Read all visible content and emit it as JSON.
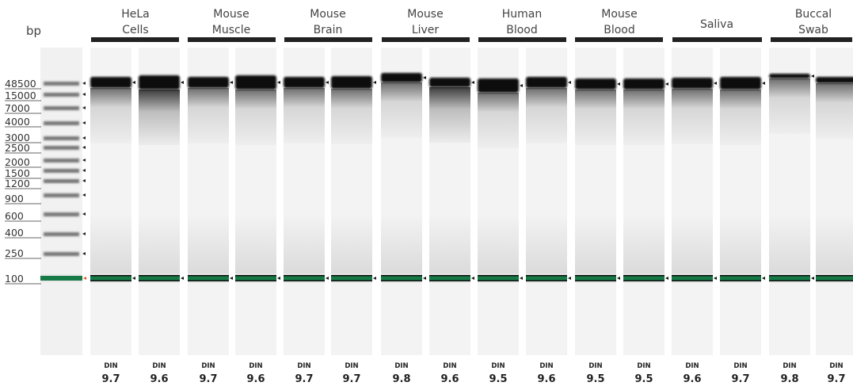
{
  "axis_label": "bp",
  "groups": [
    {
      "line1": "HeLa",
      "line2": "Cells"
    },
    {
      "line1": "Mouse",
      "line2": "Muscle"
    },
    {
      "line1": "Mouse",
      "line2": "Brain"
    },
    {
      "line1": "Mouse",
      "line2": "Liver"
    },
    {
      "line1": "Human",
      "line2": "Blood"
    },
    {
      "line1": "Mouse",
      "line2": "Blood"
    },
    {
      "line1": "Saliva",
      "line2": ""
    },
    {
      "line1": "Buccal",
      "line2": "Swab"
    }
  ],
  "ladder": {
    "labels": [
      "48500",
      "15000",
      "7000",
      "4000",
      "3000",
      "2500",
      "2000",
      "1500",
      "1200",
      "900",
      "600",
      "400",
      "250",
      "100"
    ]
  },
  "din_label": "DIN",
  "din_values": [
    "9.7",
    "9.6",
    "9.7",
    "9.6",
    "9.7",
    "9.7",
    "9.8",
    "9.6",
    "9.5",
    "9.6",
    "9.5",
    "9.5",
    "9.6",
    "9.7",
    "9.8",
    "9.7"
  ],
  "colors": {
    "lower_marker": "#157a45",
    "band": "#0a0a0a",
    "lane_background": "#f3f3f3"
  }
}
